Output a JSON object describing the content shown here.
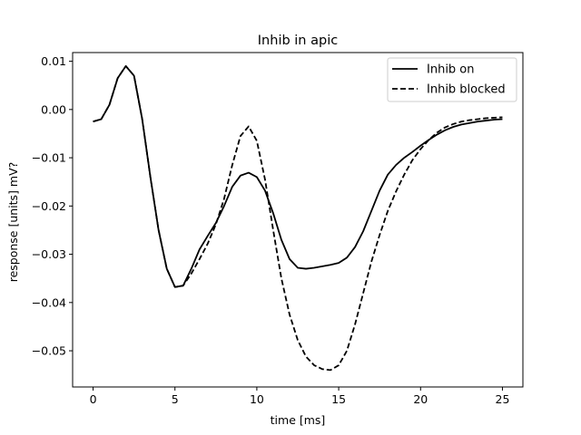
{
  "chart_data": {
    "type": "line",
    "title": "Inhib in apic",
    "xlabel": "time [ms]",
    "ylabel": "response [units] mV?",
    "xlim": [
      -1.25,
      26.25
    ],
    "ylim": [
      -0.0575,
      0.0118
    ],
    "xticks": [
      0,
      5,
      10,
      15,
      20,
      25
    ],
    "yticks": [
      0.01,
      0.0,
      -0.01,
      -0.02,
      -0.03,
      -0.04,
      -0.05
    ],
    "ytick_labels": [
      "0.01",
      "0.00",
      "−0.01",
      "−0.02",
      "−0.03",
      "−0.04",
      "−0.05"
    ],
    "grid": false,
    "legend_position": "top-right",
    "series": [
      {
        "name": "Inhib on",
        "style": "solid",
        "color": "#000000",
        "points": [
          [
            0,
            -0.0025
          ],
          [
            0.5,
            -0.002
          ],
          [
            1,
            0.001
          ],
          [
            1.5,
            0.0065
          ],
          [
            2,
            0.009
          ],
          [
            2.5,
            0.007
          ],
          [
            3,
            -0.002
          ],
          [
            3.5,
            -0.014
          ],
          [
            4,
            -0.025
          ],
          [
            4.5,
            -0.033
          ],
          [
            5,
            -0.0368
          ],
          [
            5.5,
            -0.0365
          ],
          [
            6,
            -0.033
          ],
          [
            6.5,
            -0.029
          ],
          [
            7,
            -0.0262
          ],
          [
            7.5,
            -0.0235
          ],
          [
            8,
            -0.02
          ],
          [
            8.5,
            -0.016
          ],
          [
            9,
            -0.0137
          ],
          [
            9.5,
            -0.0131
          ],
          [
            10,
            -0.014
          ],
          [
            10.5,
            -0.0168
          ],
          [
            11,
            -0.0215
          ],
          [
            11.5,
            -0.027
          ],
          [
            12,
            -0.031
          ],
          [
            12.5,
            -0.0328
          ],
          [
            13,
            -0.033
          ],
          [
            13.5,
            -0.0328
          ],
          [
            14,
            -0.0325
          ],
          [
            14.5,
            -0.0322
          ],
          [
            15,
            -0.0318
          ],
          [
            15.5,
            -0.0307
          ],
          [
            16,
            -0.0285
          ],
          [
            16.5,
            -0.0252
          ],
          [
            17,
            -0.021
          ],
          [
            17.5,
            -0.0168
          ],
          [
            18,
            -0.0135
          ],
          [
            18.5,
            -0.0115
          ],
          [
            19,
            -0.01
          ],
          [
            19.5,
            -0.0088
          ],
          [
            20,
            -0.0075
          ],
          [
            20.5,
            -0.0063
          ],
          [
            21,
            -0.0052
          ],
          [
            21.5,
            -0.0043
          ],
          [
            22,
            -0.0036
          ],
          [
            22.5,
            -0.0031
          ],
          [
            23,
            -0.0028
          ],
          [
            23.5,
            -0.0025
          ],
          [
            24,
            -0.0023
          ],
          [
            24.5,
            -0.0021
          ],
          [
            25,
            -0.002
          ]
        ]
      },
      {
        "name": "Inhib blocked",
        "style": "dashed",
        "color": "#000000",
        "points": [
          [
            0,
            -0.0025
          ],
          [
            0.5,
            -0.002
          ],
          [
            1,
            0.001
          ],
          [
            1.5,
            0.0065
          ],
          [
            2,
            0.009
          ],
          [
            2.5,
            0.007
          ],
          [
            3,
            -0.002
          ],
          [
            3.5,
            -0.014
          ],
          [
            4,
            -0.025
          ],
          [
            4.5,
            -0.033
          ],
          [
            5,
            -0.0368
          ],
          [
            5.5,
            -0.0365
          ],
          [
            6,
            -0.034
          ],
          [
            6.5,
            -0.031
          ],
          [
            7,
            -0.0278
          ],
          [
            7.5,
            -0.0238
          ],
          [
            8,
            -0.0185
          ],
          [
            8.5,
            -0.0115
          ],
          [
            9,
            -0.0055
          ],
          [
            9.5,
            -0.0035
          ],
          [
            10,
            -0.0065
          ],
          [
            10.5,
            -0.0145
          ],
          [
            11,
            -0.025
          ],
          [
            11.5,
            -0.035
          ],
          [
            12,
            -0.0425
          ],
          [
            12.5,
            -0.0478
          ],
          [
            13,
            -0.0512
          ],
          [
            13.5,
            -0.053
          ],
          [
            14,
            -0.0538
          ],
          [
            14.5,
            -0.054
          ],
          [
            15,
            -0.053
          ],
          [
            15.5,
            -0.05
          ],
          [
            16,
            -0.0445
          ],
          [
            16.5,
            -0.038
          ],
          [
            17,
            -0.0315
          ],
          [
            17.5,
            -0.026
          ],
          [
            18,
            -0.021
          ],
          [
            18.5,
            -0.017
          ],
          [
            19,
            -0.0135
          ],
          [
            19.5,
            -0.0105
          ],
          [
            20,
            -0.0082
          ],
          [
            20.5,
            -0.0063
          ],
          [
            21,
            -0.0048
          ],
          [
            21.5,
            -0.0037
          ],
          [
            22,
            -0.003
          ],
          [
            22.5,
            -0.0025
          ],
          [
            23,
            -0.0022
          ],
          [
            23.5,
            -0.002
          ],
          [
            24,
            -0.0018
          ],
          [
            24.5,
            -0.0017
          ],
          [
            25,
            -0.0016
          ]
        ]
      }
    ]
  }
}
